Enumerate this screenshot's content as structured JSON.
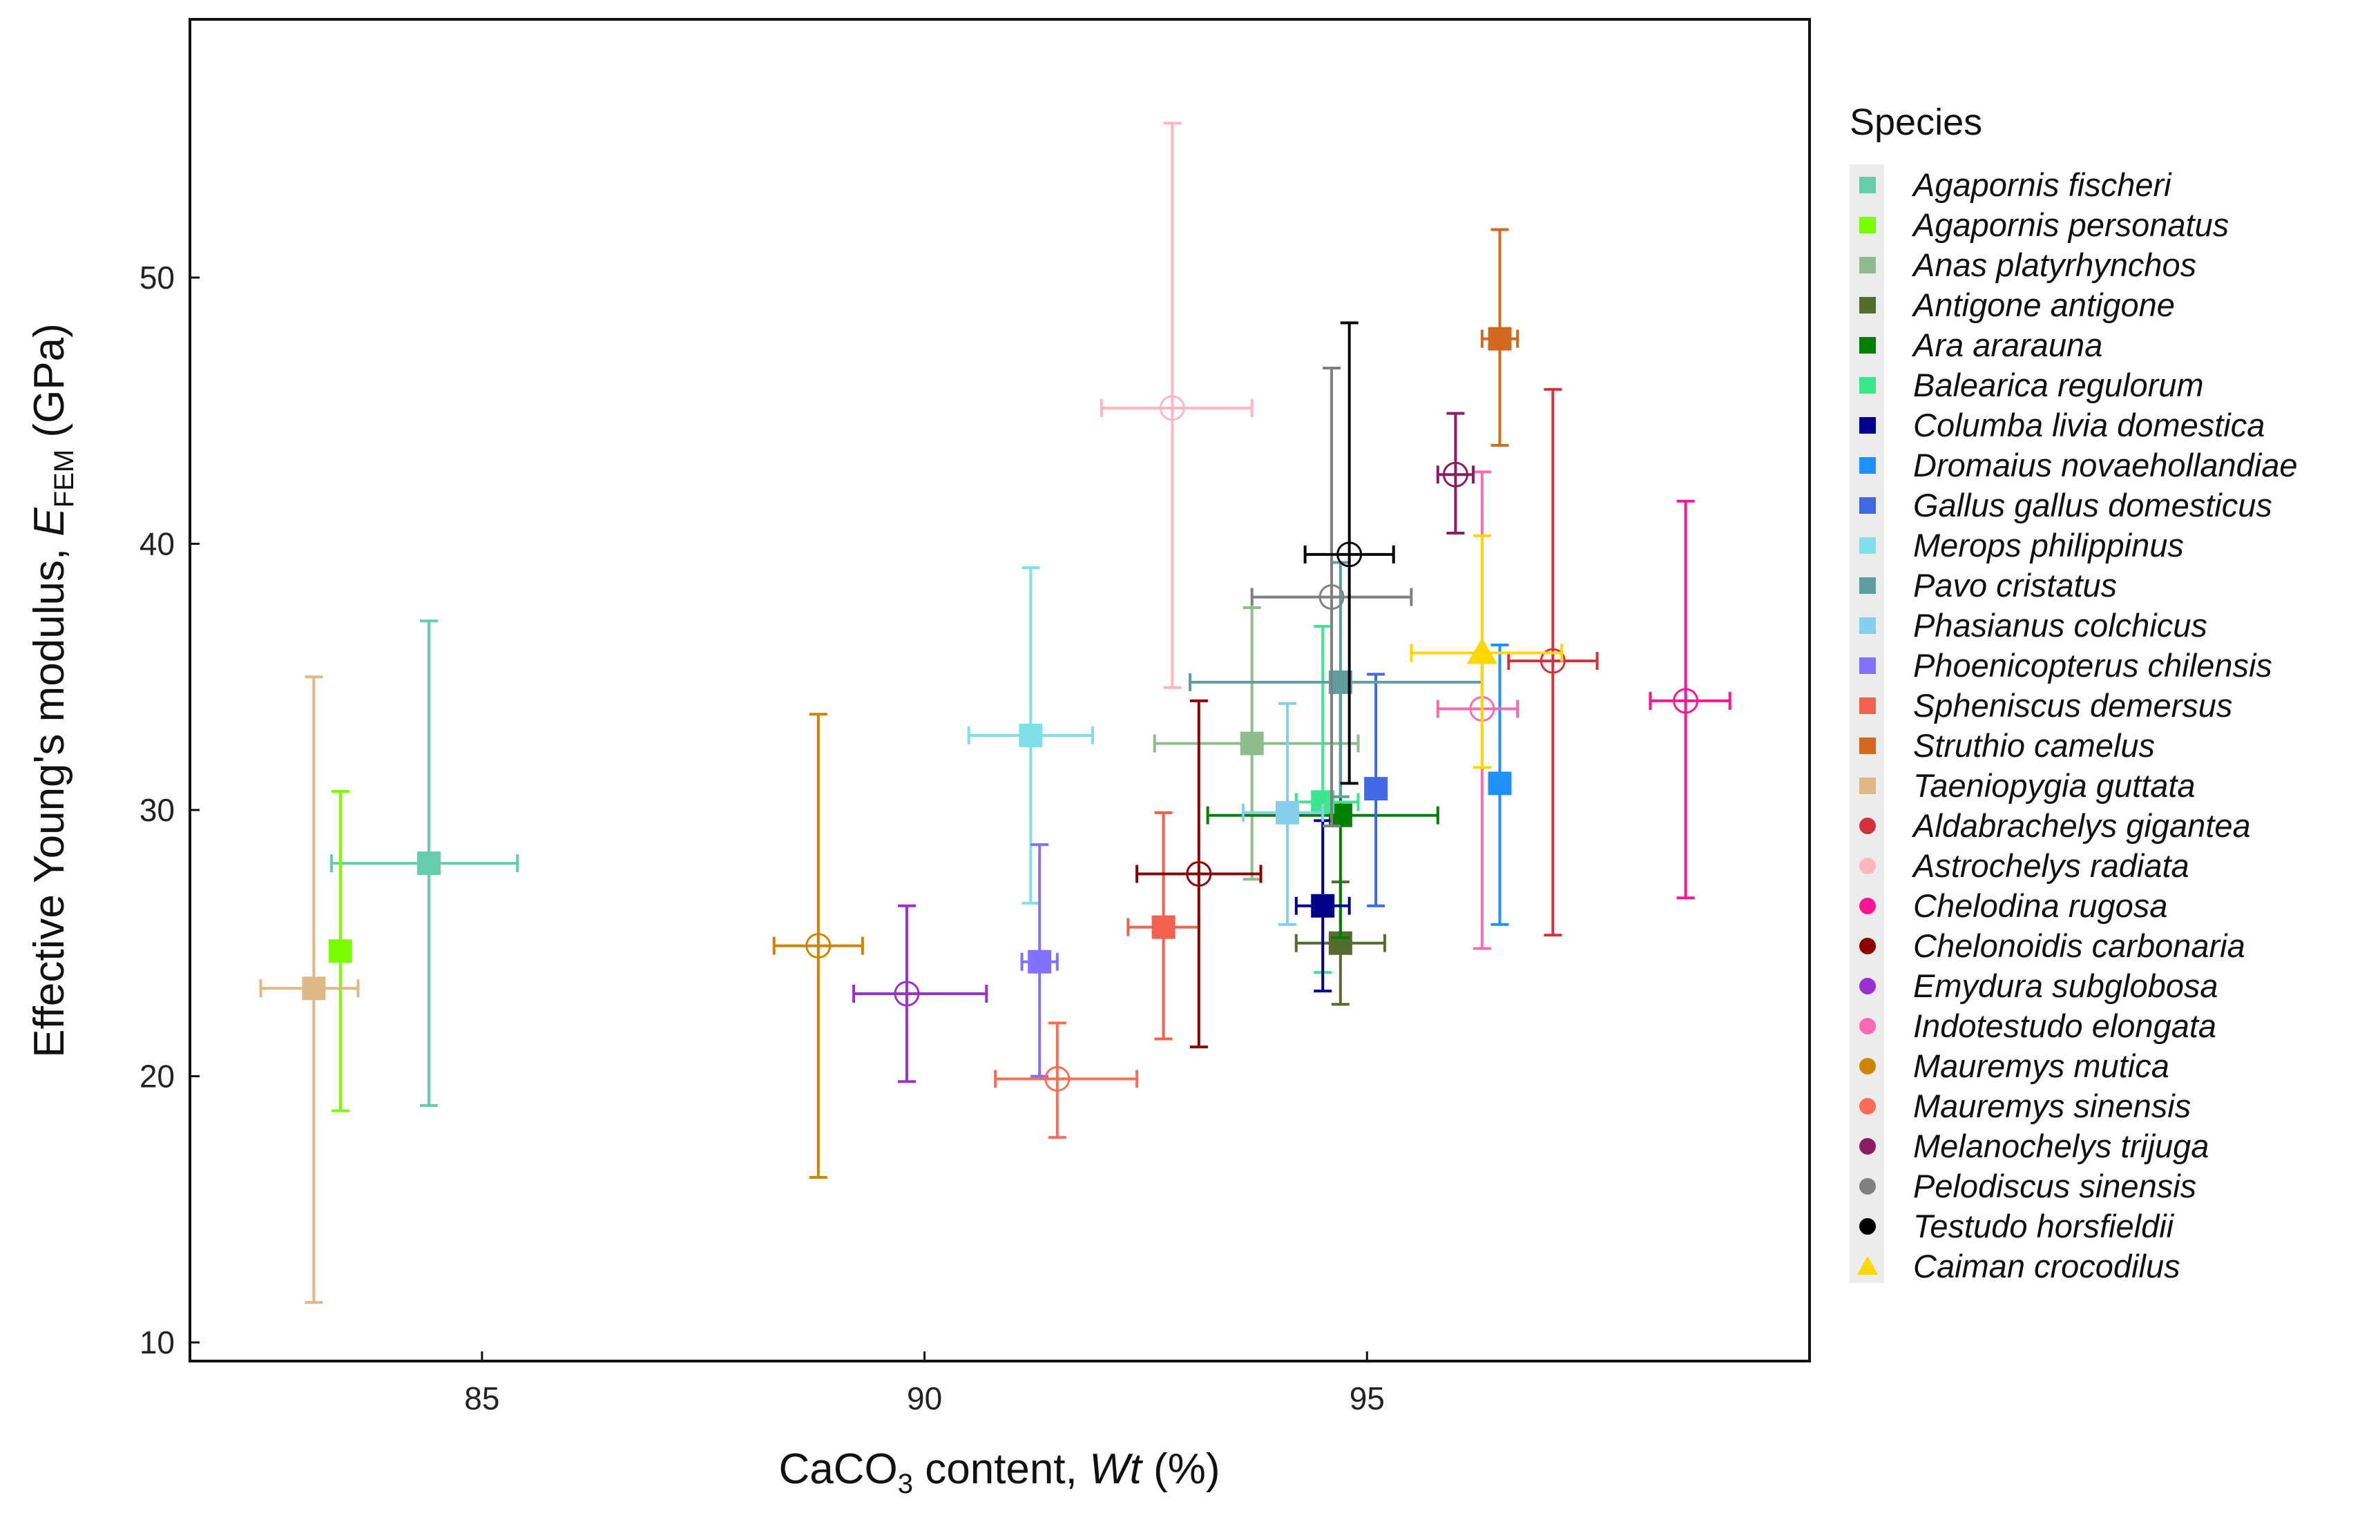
{
  "chart_data": {
    "type": "scatter",
    "title": "",
    "xlabel": {
      "base": "CaCO",
      "sub": "3",
      "mid": " content, ",
      "var": "Wt",
      "unit": " (%)"
    },
    "ylabel": {
      "base": "Effective Young's modulus, ",
      "var": "E",
      "sub": "FEM",
      "unit": " (GPa)"
    },
    "xlim": [
      81.7,
      100
    ],
    "ylim": [
      9.3,
      59.7
    ],
    "xticks": [
      85,
      90,
      95
    ],
    "yticks": [
      10,
      20,
      30,
      40,
      50
    ],
    "grid": false,
    "legend_title": "Species",
    "legend_position": "right",
    "series": [
      {
        "name": "Agapornis fischeri",
        "color": "#66CDAA",
        "marker": "square",
        "x": 84.4,
        "y": 28.0,
        "xerr": [
          83.3,
          85.4
        ],
        "yerr": [
          18.9,
          37.1
        ]
      },
      {
        "name": "Agapornis personatus",
        "color": "#7CFC00",
        "marker": "square",
        "x": 83.4,
        "y": 24.7,
        "xerr": [
          83.3,
          83.5
        ],
        "yerr": [
          18.7,
          30.7
        ]
      },
      {
        "name": "Anas platyrhynchos",
        "color": "#8FBC8F",
        "marker": "square",
        "x": 93.7,
        "y": 32.5,
        "xerr": [
          92.6,
          94.9
        ],
        "yerr": [
          27.4,
          37.6
        ]
      },
      {
        "name": "Antigone antigone",
        "color": "#556B2F",
        "marker": "square",
        "x": 94.7,
        "y": 25.0,
        "xerr": [
          94.2,
          95.2
        ],
        "yerr": [
          22.7,
          27.3
        ]
      },
      {
        "name": "Ara ararauna",
        "color": "#008000",
        "marker": "square",
        "x": 94.7,
        "y": 29.8,
        "xerr": [
          93.2,
          95.8
        ],
        "yerr": [
          25.2,
          34.5
        ]
      },
      {
        "name": "Balearica regulorum",
        "color": "#3CE68E",
        "marker": "square",
        "x": 94.5,
        "y": 30.3,
        "xerr": [
          94.2,
          94.9
        ],
        "yerr": [
          23.9,
          36.9
        ]
      },
      {
        "name": "Columba livia domestica",
        "color": "#00008B",
        "marker": "square",
        "x": 94.5,
        "y": 26.4,
        "xerr": [
          94.2,
          94.8
        ],
        "yerr": [
          23.2,
          29.6
        ]
      },
      {
        "name": "Dromaius novaehollandiae",
        "color": "#1E90FF",
        "marker": "square",
        "x": 96.5,
        "y": 31.0,
        "xerr": [
          96.4,
          96.6
        ],
        "yerr": [
          25.7,
          36.2
        ]
      },
      {
        "name": "Gallus gallus domesticus",
        "color": "#4169E1",
        "marker": "square",
        "x": 95.1,
        "y": 30.8,
        "xerr": [
          95.0,
          95.2
        ],
        "yerr": [
          26.4,
          35.1
        ]
      },
      {
        "name": "Merops philippinus",
        "color": "#80E0E8",
        "marker": "square",
        "x": 91.2,
        "y": 32.8,
        "xerr": [
          90.5,
          91.9
        ],
        "yerr": [
          26.5,
          39.1
        ]
      },
      {
        "name": "Pavo cristatus",
        "color": "#5F9EA0",
        "marker": "square",
        "x": 94.7,
        "y": 34.8,
        "xerr": [
          93.0,
          96.3
        ],
        "yerr": [
          30.5,
          39.3
        ]
      },
      {
        "name": "Phasianus colchicus",
        "color": "#87CEEB",
        "marker": "square",
        "x": 94.1,
        "y": 29.9,
        "xerr": [
          93.6,
          94.5
        ],
        "yerr": [
          25.7,
          34.0
        ]
      },
      {
        "name": "Phoenicopterus chilensis",
        "color": "#8470FF",
        "marker": "square",
        "x": 91.3,
        "y": 24.3,
        "xerr": [
          91.1,
          91.5
        ],
        "yerr": [
          20.0,
          28.7
        ]
      },
      {
        "name": "Spheniscus demersus",
        "color": "#F0624D",
        "marker": "square",
        "x": 92.7,
        "y": 25.6,
        "xerr": [
          92.3,
          93.1
        ],
        "yerr": [
          21.4,
          29.9
        ]
      },
      {
        "name": "Struthio camelus",
        "color": "#D2691E",
        "marker": "square",
        "x": 96.5,
        "y": 47.7,
        "xerr": [
          96.3,
          96.7
        ],
        "yerr": [
          43.7,
          51.8
        ]
      },
      {
        "name": "Taeniopygia guttata",
        "color": "#DEB887",
        "marker": "square",
        "x": 83.1,
        "y": 23.3,
        "xerr": [
          82.5,
          83.6
        ],
        "yerr": [
          11.5,
          35.0
        ]
      },
      {
        "name": "Aldabrachelys gigantea",
        "color": "#D2323C",
        "marker": "circle",
        "x": 97.1,
        "y": 35.6,
        "xerr": [
          96.6,
          97.6
        ],
        "yerr": [
          25.3,
          45.8
        ]
      },
      {
        "name": "Astrochelys radiata",
        "color": "#FFB6C1",
        "marker": "circle",
        "x": 92.8,
        "y": 45.1,
        "xerr": [
          92.0,
          93.7
        ],
        "yerr": [
          34.6,
          55.8
        ]
      },
      {
        "name": "Chelodina rugosa",
        "color": "#FF1493",
        "marker": "circle",
        "x": 98.6,
        "y": 34.1,
        "xerr": [
          98.2,
          99.1
        ],
        "yerr": [
          26.7,
          41.6
        ]
      },
      {
        "name": "Chelonoidis carbonaria",
        "color": "#8B0000",
        "marker": "circle",
        "x": 93.1,
        "y": 27.6,
        "xerr": [
          92.4,
          93.8
        ],
        "yerr": [
          21.1,
          34.1
        ]
      },
      {
        "name": "Emydura subglobosa",
        "color": "#9932CC",
        "marker": "circle",
        "x": 89.8,
        "y": 23.1,
        "xerr": [
          89.2,
          90.7
        ],
        "yerr": [
          19.8,
          26.4
        ]
      },
      {
        "name": "Indotestudo elongata",
        "color": "#FF69B4",
        "marker": "circle",
        "x": 96.3,
        "y": 33.8,
        "xerr": [
          95.8,
          96.7
        ],
        "yerr": [
          24.8,
          42.7
        ]
      },
      {
        "name": "Mauremys mutica",
        "color": "#CD8500",
        "marker": "circle",
        "x": 88.8,
        "y": 24.9,
        "xerr": [
          88.3,
          89.3
        ],
        "yerr": [
          16.2,
          33.6
        ]
      },
      {
        "name": "Mauremys sinensis",
        "color": "#FA6E57",
        "marker": "circle",
        "x": 91.5,
        "y": 19.9,
        "xerr": [
          90.8,
          92.4
        ],
        "yerr": [
          17.7,
          22.0
        ]
      },
      {
        "name": "Melanochelys trijuga",
        "color": "#8B1C62",
        "marker": "circle",
        "x": 96.0,
        "y": 42.6,
        "xerr": [
          95.8,
          96.2
        ],
        "yerr": [
          40.4,
          44.9
        ]
      },
      {
        "name": "Pelodiscus sinensis",
        "color": "#808080",
        "marker": "circle",
        "x": 94.6,
        "y": 38.0,
        "xerr": [
          93.7,
          95.5
        ],
        "yerr": [
          29.4,
          46.6
        ]
      },
      {
        "name": "Testudo horsfieldii",
        "color": "#000000",
        "marker": "circle",
        "x": 94.8,
        "y": 39.6,
        "xerr": [
          94.3,
          95.3
        ],
        "yerr": [
          31.0,
          48.3
        ]
      },
      {
        "name": "Caiman crocodilus",
        "color": "#FFD700",
        "marker": "triangle",
        "x": 96.3,
        "y": 35.9,
        "xerr": [
          95.5,
          97.2
        ],
        "yerr": [
          31.6,
          40.3
        ]
      }
    ]
  }
}
